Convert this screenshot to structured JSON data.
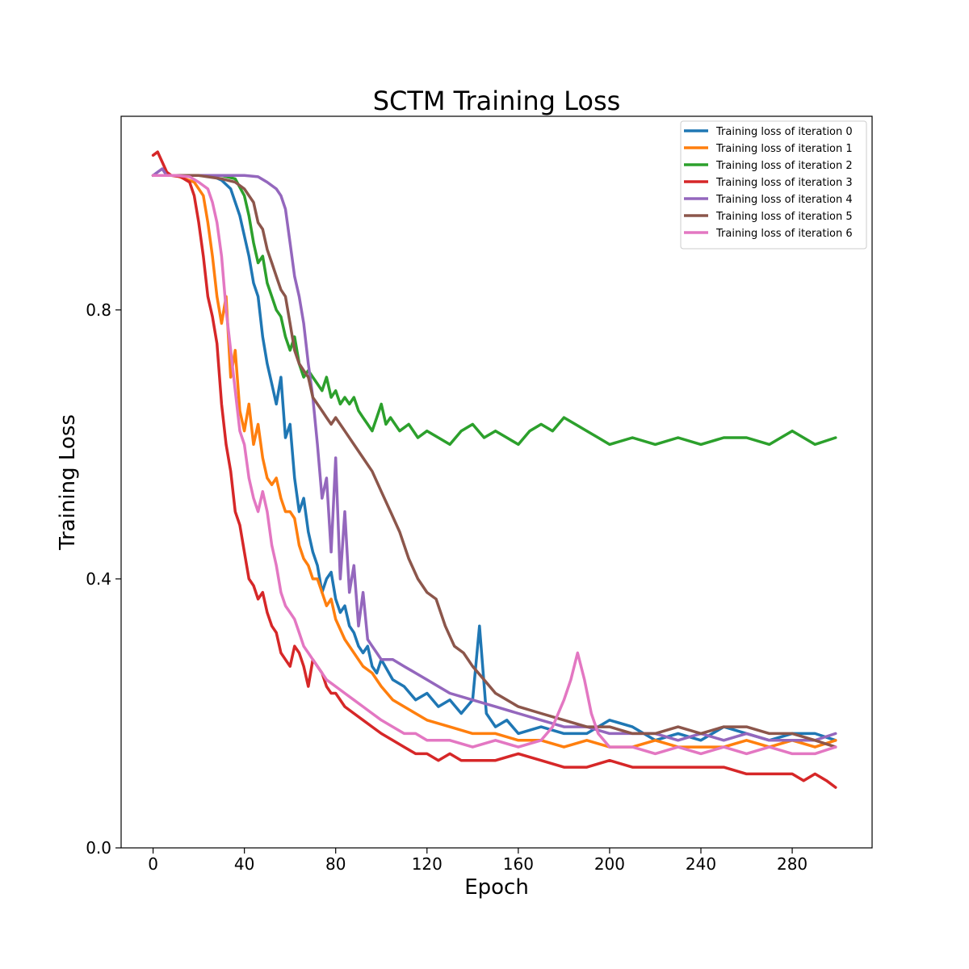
{
  "chart_data": {
    "type": "line",
    "title": "SCTM Training Loss",
    "xlabel": "Epoch",
    "ylabel": "Training Loss",
    "xlim": [
      -14,
      315
    ],
    "ylim": [
      0.0,
      1.088
    ],
    "xticks": [
      0,
      40,
      80,
      120,
      160,
      200,
      240,
      280
    ],
    "yticks": [
      0.0,
      0.4,
      0.8
    ],
    "ytick_labels": [
      "0.0",
      "0.4",
      "0.8"
    ],
    "grid": false,
    "legend_position": "top-right",
    "series": [
      {
        "name": "Training loss of iteration 0",
        "color": "#1f77b4",
        "x": [
          0,
          10,
          20,
          26,
          30,
          34,
          38,
          42,
          44,
          46,
          48,
          50,
          52,
          54,
          56,
          58,
          60,
          62,
          64,
          66,
          68,
          70,
          72,
          74,
          76,
          78,
          80,
          82,
          84,
          86,
          88,
          90,
          92,
          94,
          96,
          98,
          100,
          105,
          110,
          115,
          120,
          125,
          130,
          135,
          140,
          143,
          146,
          150,
          155,
          160,
          170,
          180,
          190,
          200,
          210,
          220,
          230,
          240,
          250,
          260,
          270,
          280,
          290,
          299
        ],
        "y": [
          1.0,
          1.0,
          1.0,
          0.999,
          0.993,
          0.98,
          0.94,
          0.88,
          0.84,
          0.82,
          0.76,
          0.72,
          0.69,
          0.66,
          0.7,
          0.61,
          0.63,
          0.55,
          0.5,
          0.52,
          0.47,
          0.44,
          0.42,
          0.38,
          0.4,
          0.41,
          0.37,
          0.35,
          0.36,
          0.33,
          0.32,
          0.3,
          0.29,
          0.3,
          0.27,
          0.26,
          0.28,
          0.25,
          0.24,
          0.22,
          0.23,
          0.21,
          0.22,
          0.2,
          0.22,
          0.33,
          0.2,
          0.18,
          0.19,
          0.17,
          0.18,
          0.17,
          0.17,
          0.19,
          0.18,
          0.16,
          0.17,
          0.16,
          0.18,
          0.17,
          0.16,
          0.17,
          0.17,
          0.16
        ]
      },
      {
        "name": "Training loss of iteration 1",
        "color": "#ff7f0e",
        "x": [
          0,
          10,
          18,
          22,
          24,
          26,
          28,
          30,
          32,
          34,
          36,
          38,
          40,
          42,
          44,
          46,
          48,
          50,
          52,
          54,
          56,
          58,
          60,
          62,
          64,
          66,
          68,
          70,
          72,
          74,
          76,
          78,
          80,
          84,
          88,
          92,
          96,
          100,
          105,
          110,
          115,
          120,
          130,
          140,
          150,
          160,
          170,
          180,
          190,
          200,
          210,
          220,
          230,
          240,
          250,
          260,
          270,
          280,
          290,
          299
        ],
        "y": [
          1.0,
          1.0,
          0.99,
          0.97,
          0.93,
          0.88,
          0.82,
          0.78,
          0.82,
          0.7,
          0.74,
          0.65,
          0.62,
          0.66,
          0.6,
          0.63,
          0.58,
          0.55,
          0.54,
          0.55,
          0.52,
          0.5,
          0.5,
          0.49,
          0.45,
          0.43,
          0.42,
          0.4,
          0.4,
          0.38,
          0.36,
          0.37,
          0.34,
          0.31,
          0.29,
          0.27,
          0.26,
          0.24,
          0.22,
          0.21,
          0.2,
          0.19,
          0.18,
          0.17,
          0.17,
          0.16,
          0.16,
          0.15,
          0.16,
          0.15,
          0.15,
          0.16,
          0.15,
          0.15,
          0.15,
          0.16,
          0.15,
          0.16,
          0.15,
          0.16
        ]
      },
      {
        "name": "Training loss of iteration 2",
        "color": "#2ca02c",
        "x": [
          0,
          20,
          30,
          36,
          40,
          42,
          44,
          46,
          48,
          50,
          52,
          54,
          56,
          58,
          60,
          62,
          64,
          66,
          68,
          70,
          72,
          74,
          76,
          78,
          80,
          82,
          84,
          86,
          88,
          90,
          92,
          94,
          96,
          98,
          100,
          102,
          104,
          108,
          112,
          116,
          120,
          125,
          130,
          135,
          140,
          145,
          150,
          155,
          160,
          165,
          170,
          175,
          180,
          185,
          190,
          195,
          200,
          210,
          220,
          230,
          240,
          250,
          260,
          270,
          280,
          290,
          299
        ],
        "y": [
          1.0,
          1.0,
          1.0,
          0.995,
          0.97,
          0.94,
          0.9,
          0.87,
          0.88,
          0.84,
          0.82,
          0.8,
          0.79,
          0.76,
          0.74,
          0.76,
          0.72,
          0.7,
          0.71,
          0.7,
          0.69,
          0.68,
          0.7,
          0.67,
          0.68,
          0.66,
          0.67,
          0.66,
          0.67,
          0.65,
          0.64,
          0.63,
          0.62,
          0.64,
          0.66,
          0.63,
          0.64,
          0.62,
          0.63,
          0.61,
          0.62,
          0.61,
          0.6,
          0.62,
          0.63,
          0.61,
          0.62,
          0.61,
          0.6,
          0.62,
          0.63,
          0.62,
          0.64,
          0.63,
          0.62,
          0.61,
          0.6,
          0.61,
          0.6,
          0.61,
          0.6,
          0.61,
          0.61,
          0.6,
          0.62,
          0.6,
          0.61
        ]
      },
      {
        "name": "Training loss of iteration 3",
        "color": "#d62728",
        "x": [
          0,
          2,
          4,
          6,
          8,
          12,
          16,
          18,
          20,
          22,
          24,
          26,
          28,
          30,
          32,
          34,
          36,
          38,
          40,
          42,
          44,
          46,
          48,
          50,
          52,
          54,
          56,
          58,
          60,
          62,
          64,
          66,
          68,
          70,
          72,
          74,
          76,
          78,
          80,
          84,
          88,
          92,
          96,
          100,
          105,
          110,
          115,
          120,
          125,
          130,
          135,
          140,
          150,
          160,
          170,
          180,
          190,
          200,
          210,
          220,
          230,
          240,
          250,
          260,
          270,
          280,
          285,
          290,
          295,
          299
        ],
        "y": [
          1.03,
          1.035,
          1.02,
          1.005,
          1.0,
          0.998,
          0.99,
          0.97,
          0.93,
          0.88,
          0.82,
          0.79,
          0.75,
          0.66,
          0.6,
          0.56,
          0.5,
          0.48,
          0.44,
          0.4,
          0.39,
          0.37,
          0.38,
          0.35,
          0.33,
          0.32,
          0.29,
          0.28,
          0.27,
          0.3,
          0.29,
          0.27,
          0.24,
          0.28,
          0.27,
          0.26,
          0.24,
          0.23,
          0.23,
          0.21,
          0.2,
          0.19,
          0.18,
          0.17,
          0.16,
          0.15,
          0.14,
          0.14,
          0.13,
          0.14,
          0.13,
          0.13,
          0.13,
          0.14,
          0.13,
          0.12,
          0.12,
          0.13,
          0.12,
          0.12,
          0.12,
          0.12,
          0.12,
          0.11,
          0.11,
          0.11,
          0.1,
          0.11,
          0.1,
          0.09
        ]
      },
      {
        "name": "Training loss of iteration 4",
        "color": "#9467bd",
        "x": [
          0,
          2,
          4,
          6,
          10,
          20,
          30,
          40,
          46,
          50,
          54,
          56,
          58,
          60,
          62,
          64,
          66,
          68,
          70,
          72,
          74,
          76,
          78,
          80,
          82,
          84,
          86,
          88,
          90,
          92,
          94,
          96,
          98,
          100,
          105,
          110,
          115,
          120,
          125,
          130,
          140,
          150,
          160,
          170,
          180,
          190,
          200,
          210,
          220,
          230,
          240,
          250,
          260,
          270,
          280,
          290,
          299
        ],
        "y": [
          1.0,
          1.005,
          1.01,
          1.0,
          1.0,
          1.0,
          1.0,
          1.0,
          0.998,
          0.99,
          0.98,
          0.97,
          0.95,
          0.9,
          0.85,
          0.82,
          0.78,
          0.72,
          0.67,
          0.6,
          0.52,
          0.55,
          0.44,
          0.58,
          0.4,
          0.5,
          0.38,
          0.42,
          0.33,
          0.38,
          0.31,
          0.3,
          0.29,
          0.28,
          0.28,
          0.27,
          0.26,
          0.25,
          0.24,
          0.23,
          0.22,
          0.21,
          0.2,
          0.19,
          0.18,
          0.18,
          0.17,
          0.17,
          0.17,
          0.16,
          0.17,
          0.16,
          0.17,
          0.16,
          0.16,
          0.16,
          0.17
        ]
      },
      {
        "name": "Training loss of iteration 5",
        "color": "#8c564b",
        "x": [
          0,
          10,
          20,
          30,
          36,
          40,
          44,
          46,
          48,
          50,
          52,
          54,
          56,
          58,
          60,
          62,
          64,
          66,
          68,
          70,
          72,
          74,
          76,
          78,
          80,
          84,
          88,
          92,
          96,
          100,
          104,
          108,
          112,
          116,
          120,
          124,
          128,
          132,
          136,
          140,
          145,
          150,
          155,
          160,
          170,
          180,
          190,
          200,
          210,
          220,
          230,
          240,
          250,
          260,
          270,
          280,
          290,
          299
        ],
        "y": [
          1.0,
          1.0,
          1.0,
          0.995,
          0.99,
          0.98,
          0.96,
          0.93,
          0.92,
          0.89,
          0.87,
          0.85,
          0.83,
          0.82,
          0.78,
          0.74,
          0.72,
          0.71,
          0.7,
          0.67,
          0.66,
          0.65,
          0.64,
          0.63,
          0.64,
          0.62,
          0.6,
          0.58,
          0.56,
          0.53,
          0.5,
          0.47,
          0.43,
          0.4,
          0.38,
          0.37,
          0.33,
          0.3,
          0.29,
          0.27,
          0.25,
          0.23,
          0.22,
          0.21,
          0.2,
          0.19,
          0.18,
          0.18,
          0.17,
          0.17,
          0.18,
          0.17,
          0.18,
          0.18,
          0.17,
          0.17,
          0.16,
          0.15
        ]
      },
      {
        "name": "Training loss of iteration 6",
        "color": "#e377c2",
        "x": [
          0,
          10,
          16,
          20,
          24,
          26,
          28,
          30,
          32,
          34,
          36,
          38,
          40,
          42,
          44,
          46,
          48,
          50,
          52,
          54,
          56,
          58,
          60,
          62,
          64,
          66,
          68,
          70,
          72,
          74,
          76,
          80,
          84,
          88,
          92,
          96,
          100,
          105,
          110,
          115,
          120,
          130,
          140,
          150,
          160,
          170,
          175,
          180,
          183,
          186,
          189,
          192,
          195,
          200,
          210,
          220,
          230,
          240,
          250,
          260,
          270,
          280,
          290,
          299
        ],
        "y": [
          1.0,
          1.0,
          0.998,
          0.99,
          0.98,
          0.96,
          0.93,
          0.88,
          0.8,
          0.74,
          0.68,
          0.62,
          0.6,
          0.55,
          0.52,
          0.5,
          0.53,
          0.5,
          0.45,
          0.42,
          0.38,
          0.36,
          0.35,
          0.34,
          0.32,
          0.3,
          0.29,
          0.28,
          0.27,
          0.26,
          0.25,
          0.24,
          0.23,
          0.22,
          0.21,
          0.2,
          0.19,
          0.18,
          0.17,
          0.17,
          0.16,
          0.16,
          0.15,
          0.16,
          0.15,
          0.16,
          0.18,
          0.22,
          0.25,
          0.29,
          0.25,
          0.2,
          0.17,
          0.15,
          0.15,
          0.14,
          0.15,
          0.14,
          0.15,
          0.14,
          0.15,
          0.14,
          0.14,
          0.15
        ]
      }
    ]
  }
}
